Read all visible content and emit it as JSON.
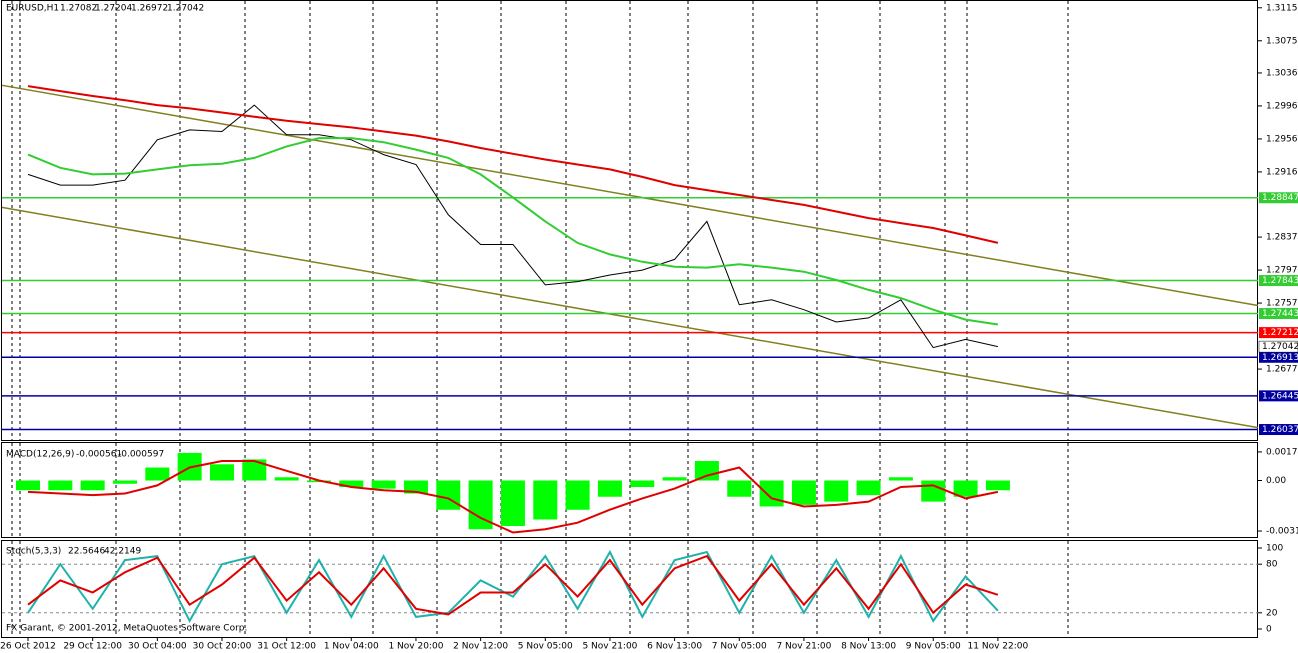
{
  "chart_data": [
    {
      "type": "line",
      "title": "EURUSD,H1",
      "ohlc": [
        1.27082,
        1.27204,
        1.26972,
        1.27042
      ],
      "categories": [
        "26 Oct 2012",
        null,
        "29 Oct 12:00",
        null,
        "30 Oct 04:00",
        null,
        "30 Oct 20:00",
        null,
        "31 Oct 12:00",
        null,
        "1 Nov 04:00",
        null,
        "1 Nov 20:00",
        null,
        "2 Nov 12:00",
        null,
        "5 Nov 05:00",
        null,
        "5 Nov 21:00",
        null,
        "6 Nov 13:00",
        null,
        "7 Nov 05:00",
        null,
        "7 Nov 21:00",
        null,
        "8 Nov 13:00",
        null,
        "9 Nov 05:00",
        null,
        "11 Nov 22:00"
      ],
      "series": [
        {
          "color": "#000000",
          "values": [
            1.2913,
            1.29,
            1.29,
            1.2906,
            1.2955,
            1.2967,
            1.2965,
            1.2997,
            1.2961,
            1.2961,
            1.2955,
            1.2937,
            1.2925,
            1.2864,
            1.2828,
            1.2828,
            1.2779,
            1.2783,
            1.2791,
            1.2797,
            1.281,
            1.2856,
            1.2755,
            1.2761,
            1.2749,
            1.2734,
            1.2739,
            1.2761,
            1.2703,
            1.2713,
            1.27042
          ]
        },
        {
          "color": "#32cd32",
          "values": [
            1.2937,
            1.2921,
            1.2913,
            1.2914,
            1.2919,
            1.2924,
            1.2926,
            1.2933,
            1.2947,
            1.2957,
            1.2957,
            1.2952,
            1.2943,
            1.2933,
            1.2913,
            1.2885,
            1.2856,
            1.283,
            1.2816,
            1.2807,
            1.2801,
            1.28,
            1.2804,
            1.28,
            1.2795,
            1.2785,
            1.2773,
            1.2763,
            1.2749,
            1.2737,
            1.2731
          ]
        },
        {
          "color": "#e00000",
          "values": [
            1.302,
            1.3014,
            1.3008,
            1.3003,
            1.2997,
            1.2993,
            1.2988,
            1.2983,
            1.2978,
            1.2974,
            1.297,
            1.2965,
            1.296,
            1.2953,
            1.2945,
            1.2938,
            1.2931,
            1.2925,
            1.2919,
            1.291,
            1.29,
            1.2894,
            1.2888,
            1.2882,
            1.2876,
            1.2868,
            1.286,
            1.2854,
            1.2848,
            1.2839,
            1.283
          ]
        }
      ],
      "levels": [
        {
          "value": 1.28847,
          "color": "#32cd32"
        },
        {
          "value": 1.27843,
          "color": "#32cd32"
        },
        {
          "value": 1.27443,
          "color": "#32cd32"
        },
        {
          "value": 1.27212,
          "color": "#ff0000"
        },
        {
          "value": 1.26913,
          "color": "#0000a0"
        },
        {
          "value": 1.26445,
          "color": "#0000a0"
        },
        {
          "value": 1.26037,
          "color": "#0000a0"
        }
      ],
      "trendlines": [
        {
          "values": [
            1.3021,
            1.2754
          ],
          "color": "#808020"
        },
        {
          "values": [
            1.2873,
            1.2606
          ],
          "color": "#808020"
        }
      ],
      "ylim": [
        1.2591,
        1.3122
      ],
      "yticks": [
        {
          "value": 1.3115,
          "label": "1.31150"
        },
        {
          "value": 1.3075,
          "label": "1.30750"
        },
        {
          "value": 1.3036,
          "label": "1.30360"
        },
        {
          "value": 1.2996,
          "label": "1.29960"
        },
        {
          "value": 1.2956,
          "label": "1.29560"
        },
        {
          "value": 1.2916,
          "label": "1.29160"
        },
        {
          "value": 1.2837,
          "label": "1.28370"
        },
        {
          "value": 1.2797,
          "label": "1.27970"
        },
        {
          "value": 1.2757,
          "label": "1.27570"
        },
        {
          "value": 1.2677,
          "label": "1.26770"
        }
      ],
      "grid": true
    },
    {
      "type": "macd",
      "label": "MACD(12,26,9)",
      "readout": [
        -0.000561,
        -0.000597
      ],
      "series": [
        {
          "color": "#00ff00",
          "values": [
            -0.0006,
            -0.0006,
            -0.0006,
            -0.0002,
            0.0008,
            0.0017,
            0.001,
            0.0013,
            0.0002,
            -0.0001,
            -0.0004,
            -0.0005,
            -0.0008,
            -0.0018,
            -0.003,
            -0.0028,
            -0.0024,
            -0.0018,
            -0.001,
            -0.0004,
            0.0002,
            0.0012,
            -0.001,
            -0.0016,
            -0.0015,
            -0.0013,
            -0.0009,
            0.0002,
            -0.0013,
            -0.001,
            -0.0006
          ]
        },
        {
          "color": "#e00000",
          "values": [
            -0.0007,
            -0.0008,
            -0.0009,
            -0.0008,
            -0.0003,
            0.0008,
            0.0012,
            0.0012,
            0.0006,
            0,
            -0.0004,
            -0.0006,
            -0.0007,
            -0.0011,
            -0.0023,
            -0.0032,
            -0.003,
            -0.0026,
            -0.0018,
            -0.0011,
            -0.0005,
            0.0003,
            0.0008,
            -0.0011,
            -0.0016,
            -0.0015,
            -0.0013,
            -0.0004,
            -0.0003,
            -0.0011,
            -0.0007
          ]
        }
      ],
      "ylim": [
        -0.00354,
        0.00231
      ],
      "yticks": [
        0.00176,
        {
          "value": 0,
          "label": "0.00"
        },
        -0.00311
      ]
    },
    {
      "type": "line",
      "label": "Stoch(5,3,3)",
      "readout": [
        22.5646,
        42.2149
      ],
      "copyright": "FX Garant, © 2001-2012, MetaQuotes Software Corp.",
      "series": [
        {
          "color": "#20b2aa",
          "values": [
            20,
            80,
            25,
            85,
            90,
            10,
            80,
            90,
            20,
            85,
            15,
            90,
            15,
            20,
            60,
            40,
            90,
            25,
            95,
            15,
            85,
            95,
            20,
            90,
            20,
            85,
            15,
            90,
            10,
            65,
            22.5646
          ]
        },
        {
          "color": "#e00000",
          "values": [
            30,
            60,
            45,
            70,
            88,
            30,
            55,
            88,
            35,
            70,
            30,
            75,
            25,
            18,
            45,
            45,
            80,
            40,
            85,
            30,
            75,
            90,
            35,
            80,
            30,
            75,
            25,
            80,
            20,
            55,
            42.2149
          ]
        }
      ],
      "ylim": [
        0,
        100
      ],
      "yticks": [
        100,
        80,
        20,
        0
      ]
    }
  ]
}
